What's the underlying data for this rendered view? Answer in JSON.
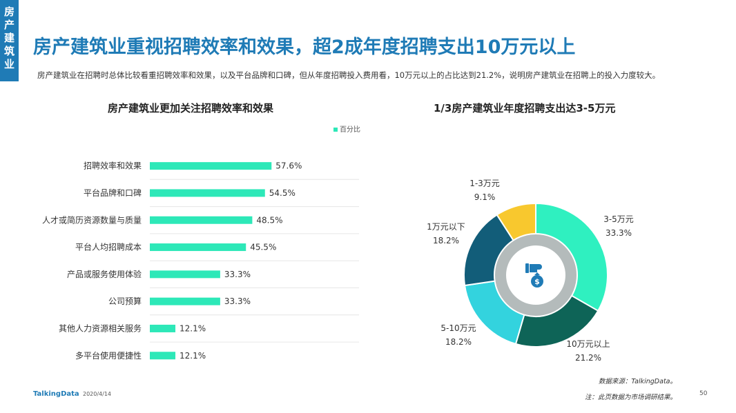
{
  "side_tab": {
    "text": "房产建筑业"
  },
  "header": {
    "title": "房产建筑业重视招聘效率和效果，超2成年度招聘支出10万元以上",
    "description": "房产建筑业在招聘时总体比较看重招聘效率和效果，以及平台品牌和口碑，但从年度招聘投入费用看，10万元以上的占比达到21.2%，说明房产建筑业在招聘上的投入力度较大。"
  },
  "chart_data": [
    {
      "type": "bar",
      "orientation": "horizontal",
      "title": "房产建筑业更加关注招聘效率和效果",
      "legend": [
        "百分比"
      ],
      "legend_position": "top-right",
      "categories": [
        "招聘效率和效果",
        "平台品牌和口碑",
        "人才或简历资源数量与质量",
        "平台人均招聘成本",
        "产品或服务使用体验",
        "公司预算",
        "其他人力资源相关服务",
        "多平台使用便捷性"
      ],
      "values": [
        57.6,
        54.5,
        48.5,
        45.5,
        33.3,
        33.3,
        12.1,
        12.1
      ],
      "value_labels": [
        "57.6%",
        "54.5%",
        "48.5%",
        "45.5%",
        "33.3%",
        "33.3%",
        "12.1%",
        "12.1%"
      ],
      "color": "#2de8b8",
      "xlim": [
        0,
        100
      ]
    },
    {
      "type": "pie",
      "variant": "donut",
      "title": "1/3房产建筑业年度招聘支出达3-5万元",
      "slices": [
        {
          "label": "3-5万元",
          "value": 33.3,
          "value_label": "33.3%",
          "color": "#2ff0c0"
        },
        {
          "label": "10万元以上",
          "value": 21.2,
          "value_label": "21.2%",
          "color": "#0e6457"
        },
        {
          "label": "5-10万元",
          "value": 18.2,
          "value_label": "18.2%",
          "color": "#33d3de"
        },
        {
          "label": "1万元以下",
          "value": 18.2,
          "value_label": "18.2%",
          "color": "#125d79"
        },
        {
          "label": "1-3万元",
          "value": 9.1,
          "value_label": "9.1%",
          "color": "#f8c82e"
        }
      ],
      "center_icon": "money-bag-hand-icon"
    }
  ],
  "footer": {
    "logo": "TalkingData",
    "date": "2020/4/14",
    "source": "数据来源：TalkingData。",
    "note": "注：此页数据为市场调研结果。",
    "page_number": "50"
  },
  "colors": {
    "accent": "#1f7bb6",
    "bar": "#2de8b8"
  }
}
